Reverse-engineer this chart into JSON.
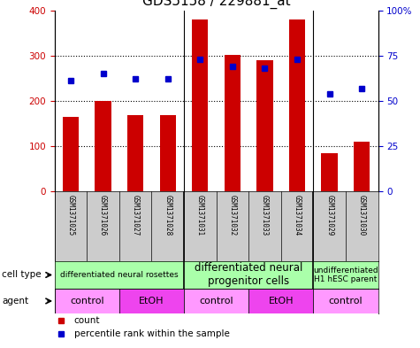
{
  "title": "GDS5158 / 229881_at",
  "samples": [
    "GSM1371025",
    "GSM1371026",
    "GSM1371027",
    "GSM1371028",
    "GSM1371031",
    "GSM1371032",
    "GSM1371033",
    "GSM1371034",
    "GSM1371029",
    "GSM1371030"
  ],
  "counts": [
    165,
    200,
    168,
    168,
    380,
    302,
    290,
    380,
    85,
    110
  ],
  "percentiles": [
    61,
    65,
    62,
    62,
    73,
    69,
    68,
    73,
    54,
    57
  ],
  "ylim_left": [
    0,
    400
  ],
  "ylim_right": [
    0,
    100
  ],
  "yticks_left": [
    0,
    100,
    200,
    300,
    400
  ],
  "ytick_labels_right": [
    "0",
    "25",
    "50",
    "75",
    "100%"
  ],
  "bar_color": "#cc0000",
  "dot_color": "#0000cc",
  "cell_type_groups": [
    {
      "label": "differentiated neural rosettes",
      "start": 0,
      "end": 4,
      "fontsize": 6.5
    },
    {
      "label": "differentiated neural\nprogenitor cells",
      "start": 4,
      "end": 8,
      "fontsize": 8.5
    },
    {
      "label": "undifferentiated\nH1 hESC parent",
      "start": 8,
      "end": 10,
      "fontsize": 6.5
    }
  ],
  "agent_groups": [
    {
      "label": "control",
      "start": 0,
      "end": 2,
      "color": "#ff99ff"
    },
    {
      "label": "EtOH",
      "start": 2,
      "end": 4,
      "color": "#ee44ee"
    },
    {
      "label": "control",
      "start": 4,
      "end": 6,
      "color": "#ff99ff"
    },
    {
      "label": "EtOH",
      "start": 6,
      "end": 8,
      "color": "#ee44ee"
    },
    {
      "label": "control",
      "start": 8,
      "end": 10,
      "color": "#ff99ff"
    }
  ],
  "group_boundaries": [
    3.5,
    7.5
  ],
  "cell_type_color": "#aaffaa",
  "tick_bg_color": "#cccccc",
  "background_color": "#ffffff"
}
